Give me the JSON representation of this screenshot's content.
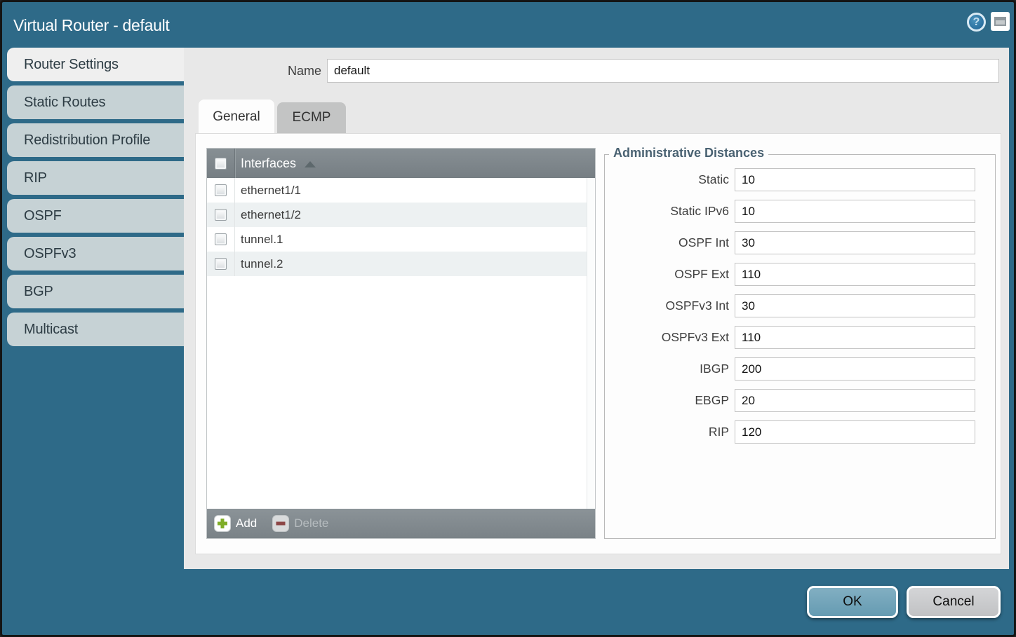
{
  "window": {
    "title": "Virtual Router - default"
  },
  "titlebar": {
    "help_icon_glyph": "?"
  },
  "sidebar": {
    "items": [
      {
        "label": "Router Settings",
        "active": true
      },
      {
        "label": "Static Routes",
        "active": false
      },
      {
        "label": "Redistribution Profile",
        "active": false
      },
      {
        "label": "RIP",
        "active": false
      },
      {
        "label": "OSPF",
        "active": false
      },
      {
        "label": "OSPFv3",
        "active": false
      },
      {
        "label": "BGP",
        "active": false
      },
      {
        "label": "Multicast",
        "active": false
      }
    ]
  },
  "form": {
    "name_label": "Name",
    "name_value": "default"
  },
  "tabs": [
    {
      "label": "General",
      "active": true
    },
    {
      "label": "ECMP",
      "active": false
    }
  ],
  "interfaces_table": {
    "header_label": "Interfaces",
    "sort": "ascending",
    "rows": [
      {
        "label": "ethernet1/1",
        "checked": false
      },
      {
        "label": "ethernet1/2",
        "checked": false
      },
      {
        "label": "tunnel.1",
        "checked": false
      },
      {
        "label": "tunnel.2",
        "checked": false
      }
    ],
    "footer": {
      "add_label": "Add",
      "delete_label": "Delete",
      "delete_enabled": false
    }
  },
  "admin_distances": {
    "title": "Administrative Distances",
    "fields": [
      {
        "label": "Static",
        "value": "10"
      },
      {
        "label": "Static IPv6",
        "value": "10"
      },
      {
        "label": "OSPF Int",
        "value": "30"
      },
      {
        "label": "OSPF Ext",
        "value": "110"
      },
      {
        "label": "OSPFv3 Int",
        "value": "30"
      },
      {
        "label": "OSPFv3 Ext",
        "value": "110"
      },
      {
        "label": "IBGP",
        "value": "200"
      },
      {
        "label": "EBGP",
        "value": "20"
      },
      {
        "label": "RIP",
        "value": "120"
      }
    ]
  },
  "actions": {
    "ok_label": "OK",
    "cancel_label": "Cancel"
  },
  "colors": {
    "dialog_background": "#2e6a88",
    "titlebar_text": "#ffffff",
    "sidebar_tab_inactive": "#c6d2d5",
    "sidebar_tab_active": "#efefef",
    "panel_gray": "#e8e8e8",
    "table_header_gray": "#7e868b",
    "row_alt": "#edf1f2",
    "fieldset_title": "#4a6272",
    "add_plus_green": "#7fad27",
    "delete_minus_red": "#8c4545",
    "ok_button": "#72a4ba",
    "cancel_button": "#c9cacc"
  }
}
